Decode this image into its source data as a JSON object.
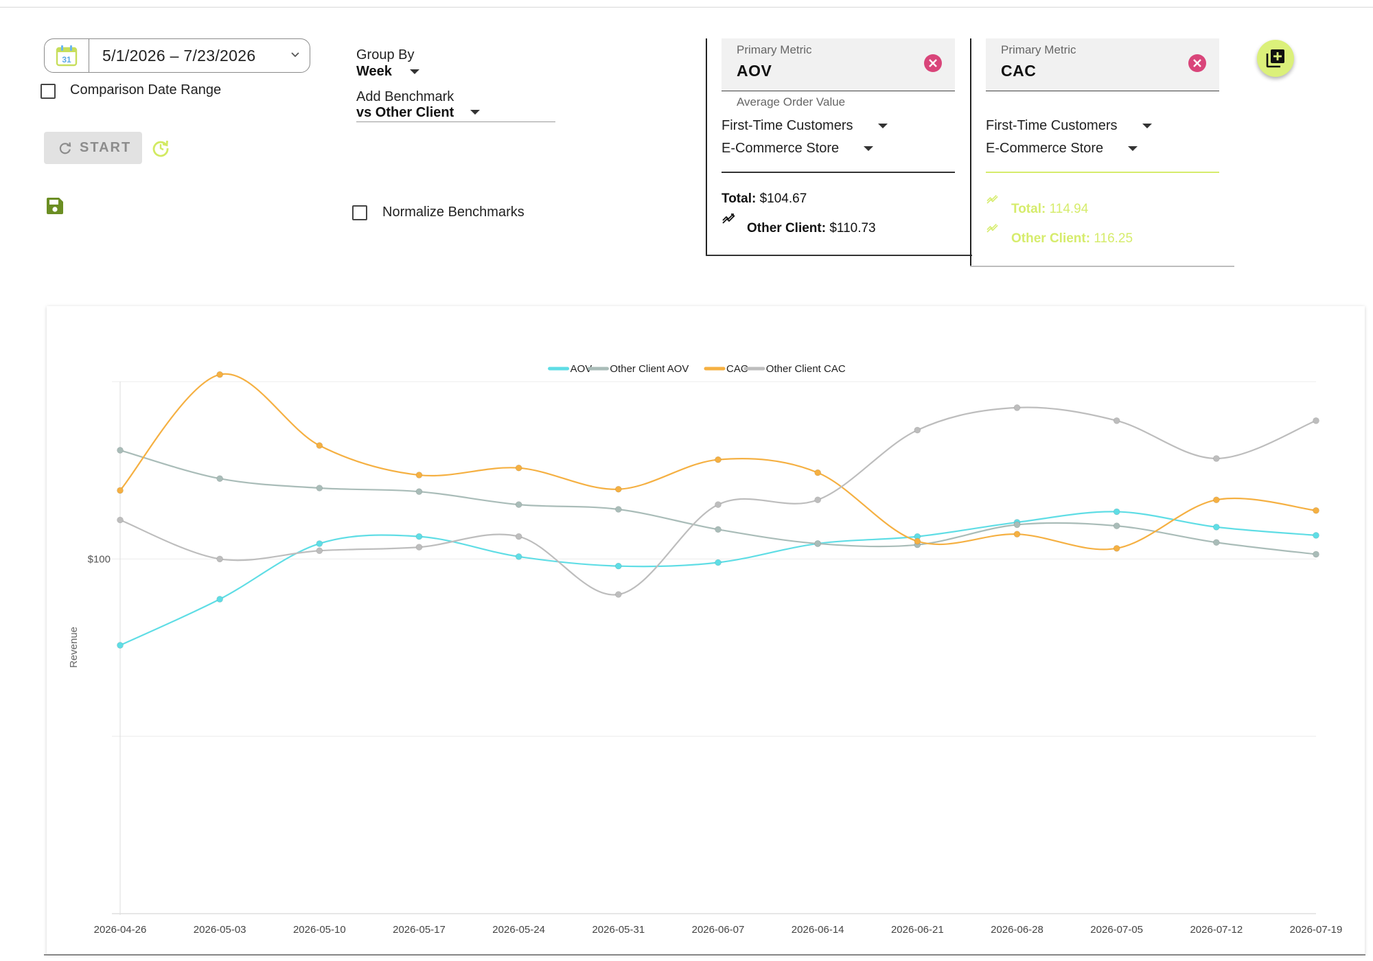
{
  "date_range": {
    "value": "5/1/2026 – 7/23/2026",
    "calendar_day": "31"
  },
  "comparison_label": "Comparison Date Range",
  "start_label": "START",
  "group_by": {
    "label": "Group By",
    "value": "Week"
  },
  "benchmark": {
    "label": "Add Benchmark",
    "value": "vs Other Client"
  },
  "normalize_label": "Normalize Benchmarks",
  "card1": {
    "caption": "Primary Metric",
    "metric": "AOV",
    "description": "Average Order Value",
    "segment": "First-Time Customers",
    "channel": "E-Commerce Store",
    "total_label": "Total:",
    "total_value": "$104.67",
    "other_label": "Other Client:",
    "other_value": "$110.73"
  },
  "card2": {
    "caption": "Primary Metric",
    "metric": "CAC",
    "segment": "First-Time Customers",
    "channel": "E-Commerce Store",
    "total_label": "Total:",
    "total_value": "114.94",
    "other_label": "Other Client:",
    "other_value": "116.25"
  },
  "colors": {
    "accent_green": "#dbf07a",
    "icon_green": "#6b8e23",
    "aov": "#5fdde5",
    "other_aov": "#a9bcb8",
    "cac": "#f5b042",
    "other_cac": "#bdbdbd",
    "close_pink": "#d9457a"
  },
  "chart_data": {
    "type": "line",
    "ylabel": "Revenue",
    "xlabel": "",
    "y_tick_labels": [
      "$100"
    ],
    "x": [
      "2026-04-26",
      "2026-05-03",
      "2026-05-10",
      "2026-05-17",
      "2026-05-24",
      "2026-05-31",
      "2026-06-07",
      "2026-06-14",
      "2026-06-21",
      "2026-06-28",
      "2026-07-05",
      "2026-07-12",
      "2026-07-19"
    ],
    "ylim": [
      70,
      115
    ],
    "log_scale": false,
    "grid": true,
    "legend_position": "top",
    "series": [
      {
        "name": "AOV",
        "color": "#5fdde5",
        "values": [
          92.7,
          96.6,
          101.3,
          101.9,
          100.2,
          99.4,
          99.7,
          101.3,
          101.9,
          103.1,
          104.0,
          102.7,
          102.0
        ]
      },
      {
        "name": "Other Client AOV",
        "color": "#a9bcb8",
        "values": [
          109.2,
          106.8,
          106.0,
          105.7,
          104.6,
          104.2,
          102.5,
          101.3,
          101.2,
          102.9,
          102.8,
          101.4,
          100.4
        ]
      },
      {
        "name": "CAC",
        "color": "#f5b042",
        "values": [
          105.8,
          115.6,
          109.6,
          107.1,
          107.7,
          105.9,
          108.4,
          107.3,
          101.5,
          102.1,
          100.9,
          105.0,
          104.1
        ]
      },
      {
        "name": "Other Client CAC",
        "color": "#bdbdbd",
        "values": [
          103.3,
          100.0,
          100.7,
          101.0,
          101.9,
          97.0,
          104.6,
          105.0,
          110.9,
          112.8,
          111.7,
          108.5,
          111.7
        ]
      }
    ]
  }
}
